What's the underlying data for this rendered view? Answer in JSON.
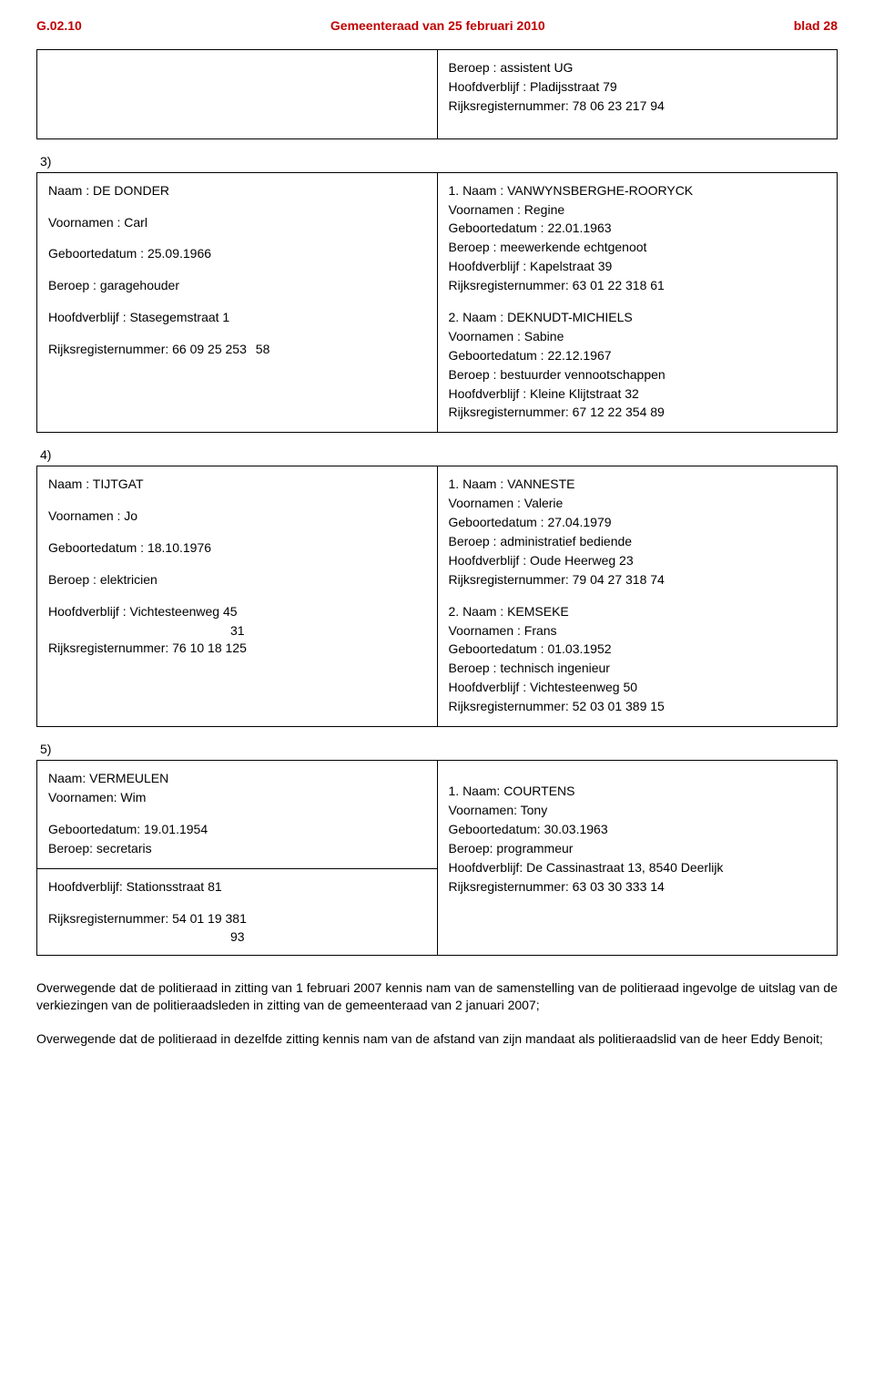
{
  "header": {
    "left": "G.02.10",
    "center": "Gemeenteraad van 25 februari 2010",
    "right": "blad 28"
  },
  "top_box": {
    "lines": [
      "Beroep : assistent UG",
      "Hoofdverblijf : Pladijsstraat 79",
      "Rijksregisternummer: 78 06 23 217 94"
    ]
  },
  "section3": {
    "num": "3)",
    "left": {
      "naam": "Naam : DE DONDER",
      "voornamen": "Voornamen : Carl",
      "geboorte": "Geboortedatum : 25.09.1966",
      "beroep": "Beroep : garagehouder",
      "hoofd": "Hoofdverblijf : Stasegemstraat 1",
      "rr": "Rijksregisternummer: 66 09 25 253",
      "rr_suffix": "58"
    },
    "right": {
      "p1": [
        "1. Naam : VANWYNSBERGHE-ROORYCK",
        "Voornamen : Regine",
        "Geboortedatum : 22.01.1963",
        "Beroep : meewerkende echtgenoot",
        "Hoofdverblijf : Kapelstraat 39",
        "Rijksregisternummer: 63 01 22 318 61"
      ],
      "p2": [
        "2. Naam : DEKNUDT-MICHIELS",
        "Voornamen : Sabine",
        "Geboortedatum : 22.12.1967",
        "Beroep : bestuurder vennootschappen",
        "Hoofdverblijf : Kleine Klijtstraat 32",
        "Rijksregisternummer: 67 12 22 354 89"
      ]
    }
  },
  "section4": {
    "num": "4)",
    "left": {
      "naam": "Naam : TIJTGAT",
      "voornamen": "Voornamen : Jo",
      "geboorte": "Geboortedatum : 18.10.1976",
      "beroep": "Beroep : elektricien",
      "hoofd": "Hoofdverblijf : Vichtesteenweg 45",
      "rr_mid": "31",
      "rr": "Rijksregisternummer: 76 10 18 125"
    },
    "right": {
      "p1": [
        "1. Naam : VANNESTE",
        "Voornamen : Valerie",
        "Geboortedatum : 27.04.1979",
        "Beroep : administratief bediende",
        "Hoofdverblijf : Oude Heerweg 23",
        "Rijksregisternummer: 79 04 27 318 74"
      ],
      "p2": [
        "2. Naam : KEMSEKE",
        "Voornamen : Frans",
        "Geboortedatum : 01.03.1952",
        "Beroep : technisch ingenieur",
        "Hoofdverblijf : Vichtesteenweg 50",
        "Rijksregisternummer: 52 03 01 389 15"
      ]
    }
  },
  "section5": {
    "num": "5)",
    "left": {
      "naam": "Naam: VERMEULEN",
      "voornamen": "Voornamen: Wim",
      "geboorte": "Geboortedatum: 19.01.1954",
      "beroep": "Beroep: secretaris",
      "hoofd": "Hoofdverblijf: Stationsstraat 81",
      "rr": "Rijksregisternummer: 54 01 19 381",
      "rr_suffix": "93"
    },
    "right": {
      "p1": [
        "1. Naam: COURTENS",
        "Voornamen: Tony",
        "Geboortedatum: 30.03.1963",
        "Beroep: programmeur",
        "Hoofdverblijf: De Cassinastraat 13, 8540 Deerlijk",
        "Rijksregisternummer: 63 03 30 333 14"
      ]
    }
  },
  "paragraphs": {
    "p1": "Overwegende dat de politieraad in zitting van 1 februari 2007 kennis nam van de samenstelling van de politieraad ingevolge de uitslag van de verkiezingen van de politieraadsleden in zitting van de gemeenteraad van 2 januari 2007;",
    "p2": "Overwegende dat de politieraad in dezelfde zitting kennis nam van de afstand van zijn mandaat als politieraadslid van de heer Eddy Benoit;"
  }
}
